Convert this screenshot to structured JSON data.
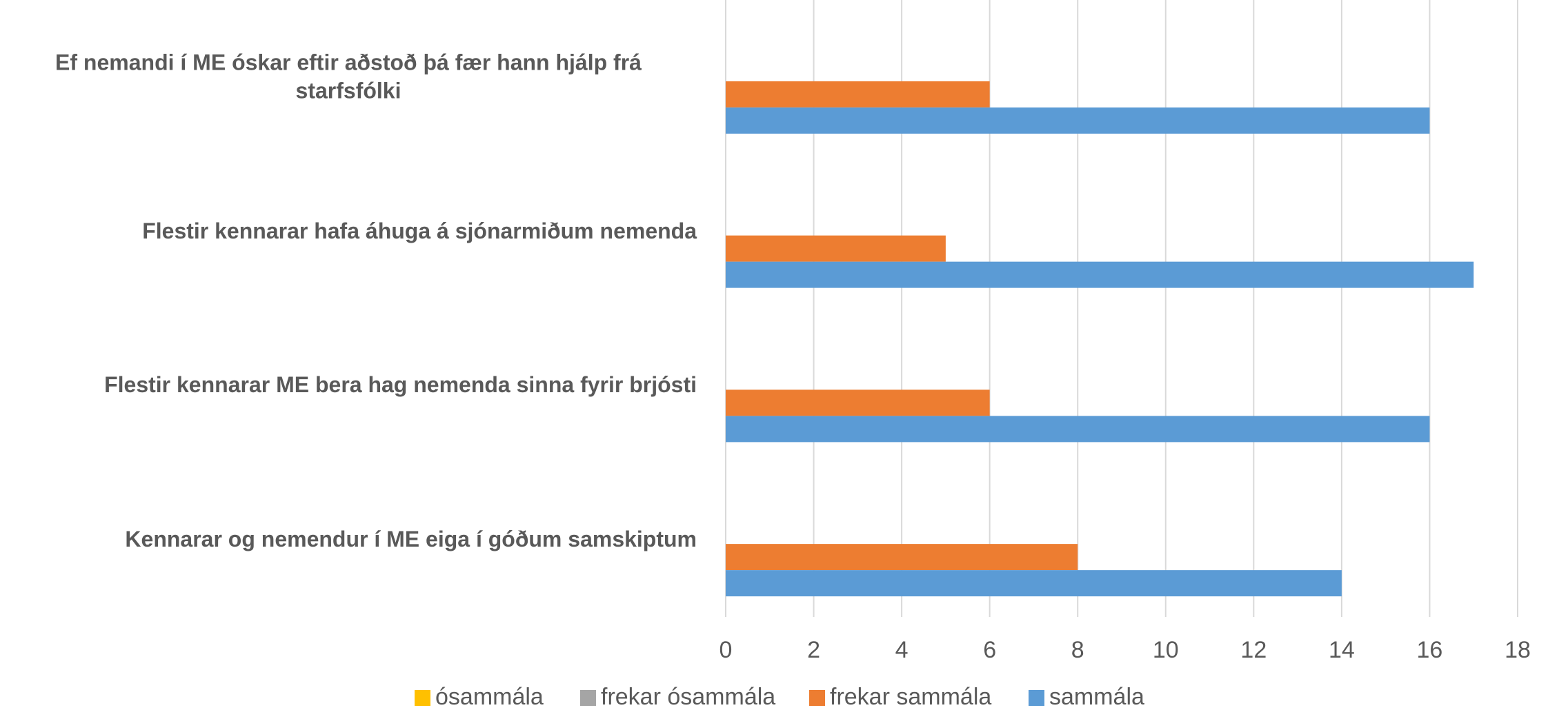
{
  "chart_data": {
    "type": "bar",
    "orientation": "horizontal",
    "categories": [
      "Ef nemandi í ME óskar eftir aðstoð þá fær hann hjálp frá starfsfólki",
      "Flestir kennarar hafa áhuga á sjónarmiðum nemenda",
      "Flestir kennarar ME bera hag nemenda sinna fyrir brjósti",
      "Kennarar og nemendur í ME eiga í góðum samskiptum"
    ],
    "series": [
      {
        "name": "ósammála",
        "color": "#ffc000",
        "values": [
          0,
          0,
          0,
          0
        ]
      },
      {
        "name": "frekar ósammála",
        "color": "#a5a5a5",
        "values": [
          0,
          0,
          0,
          0
        ]
      },
      {
        "name": "frekar sammála",
        "color": "#ed7d31",
        "values": [
          6,
          5,
          6,
          8
        ]
      },
      {
        "name": "sammála",
        "color": "#5b9bd5",
        "values": [
          16,
          17,
          16,
          14
        ]
      }
    ],
    "xlim": [
      0,
      18
    ],
    "xticks": [
      0,
      2,
      4,
      6,
      8,
      10,
      12,
      14,
      16,
      18
    ],
    "grid": true,
    "legend": "bottom"
  }
}
